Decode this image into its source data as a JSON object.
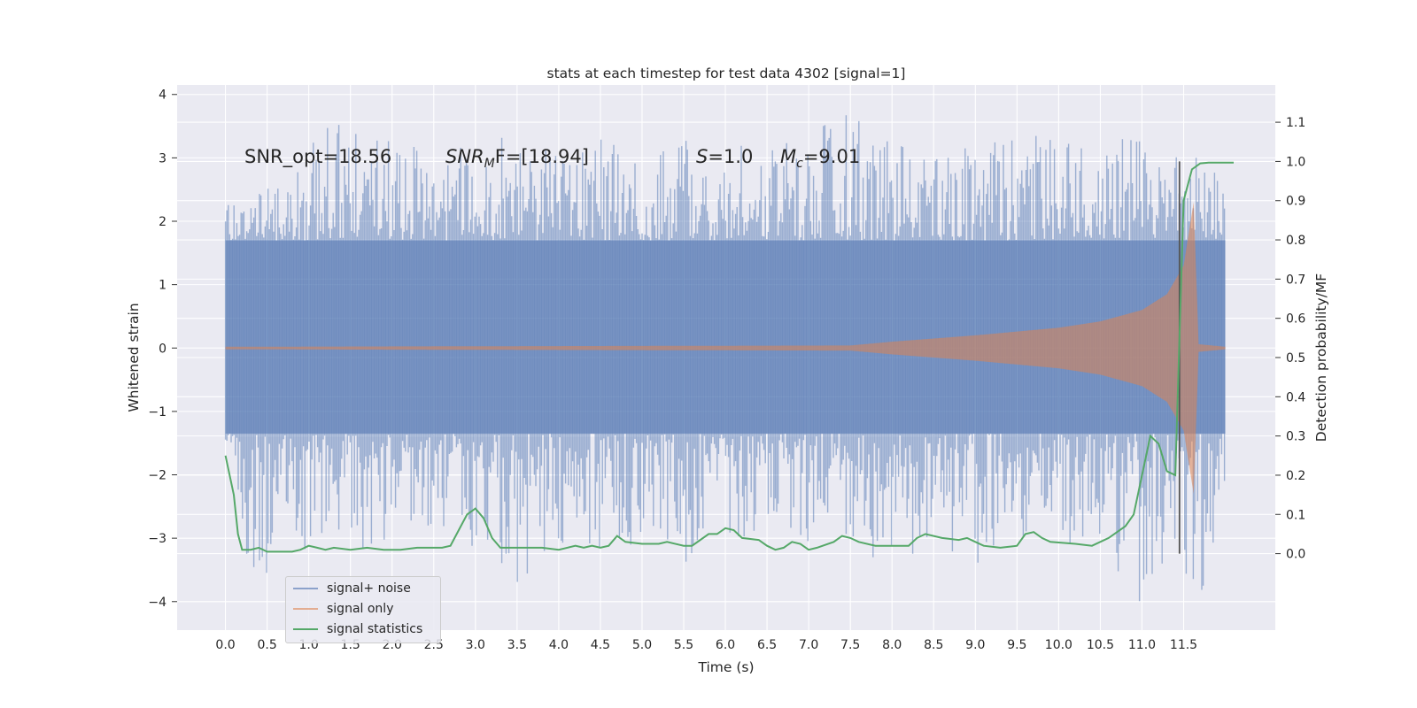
{
  "chart_data": {
    "type": "line",
    "title": "stats at each timestep for test data 4302 [signal=1]",
    "xlabel": "Time (s)",
    "ylabel": "Whitened strain",
    "y2label": "Detection probability/MF",
    "xlim": [
      -0.58,
      12.6
    ],
    "ylim": [
      -4.45,
      4.15
    ],
    "y2lim": [
      -0.195,
      1.195
    ],
    "x_ticks": [
      "0.0",
      "0.5",
      "1.0",
      "1.5",
      "2.0",
      "2.5",
      "3.0",
      "3.5",
      "4.0",
      "4.5",
      "5.0",
      "5.5",
      "6.0",
      "6.5",
      "7.0",
      "7.5",
      "8.0",
      "8.5",
      "9.0",
      "9.5",
      "10.0",
      "10.5",
      "11.0",
      "11.5"
    ],
    "y_ticks": [
      "−4",
      "−3",
      "−2",
      "−1",
      "0",
      "1",
      "2",
      "3",
      "4"
    ],
    "y2_ticks": [
      "0.0",
      "0.1",
      "0.2",
      "0.3",
      "0.4",
      "0.5",
      "0.6",
      "0.7",
      "0.8",
      "0.9",
      "1.0",
      "1.1"
    ],
    "grid": true,
    "legend_position": "lower-left",
    "annotations": [
      {
        "id": "snr-opt",
        "text": "SNR_opt=18.56",
        "x": 0.2,
        "y": 2.9
      },
      {
        "id": "snr-mf",
        "text": "SNR",
        "sub": "M",
        "rest": "F=[18.94]",
        "x": 2.6,
        "y": 2.9
      },
      {
        "id": "s-label",
        "text": "S",
        "rest": "=1.0",
        "x": 5.6,
        "y": 2.9
      },
      {
        "id": "mc-label",
        "text": "M",
        "sub": "c",
        "rest": "=9.01",
        "x": 6.6,
        "y": 2.9
      }
    ],
    "vline": {
      "x": 11.45,
      "y2_range": [
        0.0,
        1.0
      ],
      "color": "#555555"
    },
    "series": [
      {
        "name": "signal+ noise",
        "color": "#4c72b0",
        "axis": "left",
        "x_range": [
          0.0,
          12.0
        ],
        "core_band": [
          -1.35,
          1.7
        ],
        "spike_envelope": [
          {
            "x": 0.0,
            "max": 2.3,
            "min": -2.4
          },
          {
            "x": 0.25,
            "max": 2.2,
            "min": -3.4
          },
          {
            "x": 0.45,
            "max": 2.5,
            "min": -3.6
          },
          {
            "x": 0.75,
            "max": 2.7,
            "min": -3.3
          },
          {
            "x": 1.15,
            "max": 3.5,
            "min": -3.1
          },
          {
            "x": 1.4,
            "max": 3.6,
            "min": -3.0
          },
          {
            "x": 1.6,
            "max": 3.4,
            "min": -3.2
          },
          {
            "x": 2.2,
            "max": 3.3,
            "min": -2.9
          },
          {
            "x": 2.6,
            "max": 3.2,
            "min": -3.0
          },
          {
            "x": 3.0,
            "max": 3.6,
            "min": -3.3
          },
          {
            "x": 3.5,
            "max": 3.2,
            "min": -3.8
          },
          {
            "x": 4.0,
            "max": 3.1,
            "min": -3.1
          },
          {
            "x": 4.5,
            "max": 3.3,
            "min": -3.2
          },
          {
            "x": 5.0,
            "max": 3.2,
            "min": -3.1
          },
          {
            "x": 5.5,
            "max": 3.3,
            "min": -3.6
          },
          {
            "x": 6.0,
            "max": 3.4,
            "min": -3.2
          },
          {
            "x": 6.5,
            "max": 3.2,
            "min": -3.1
          },
          {
            "x": 7.0,
            "max": 3.3,
            "min": -3.1
          },
          {
            "x": 7.3,
            "max": 3.8,
            "min": -3.0
          },
          {
            "x": 8.0,
            "max": 3.3,
            "min": -3.7
          },
          {
            "x": 8.5,
            "max": 3.2,
            "min": -3.0
          },
          {
            "x": 9.0,
            "max": 3.3,
            "min": -3.5
          },
          {
            "x": 9.4,
            "max": 3.7,
            "min": -3.0
          },
          {
            "x": 10.0,
            "max": 3.4,
            "min": -3.3
          },
          {
            "x": 10.5,
            "max": 3.5,
            "min": -3.1
          },
          {
            "x": 11.0,
            "max": 3.3,
            "min": -4.1
          },
          {
            "x": 11.5,
            "max": 3.2,
            "min": -3.7
          },
          {
            "x": 11.8,
            "max": 3.2,
            "min": -3.9
          },
          {
            "x": 12.0,
            "max": 2.4,
            "min": -3.3
          }
        ]
      },
      {
        "name": "signal only",
        "color": "#dd8452",
        "axis": "left",
        "x_range": [
          0.0,
          12.0
        ],
        "envelope": [
          {
            "x": 0.0,
            "amp": 0.02
          },
          {
            "x": 7.5,
            "amp": 0.04
          },
          {
            "x": 8.0,
            "amp": 0.1
          },
          {
            "x": 9.0,
            "amp": 0.2
          },
          {
            "x": 10.0,
            "amp": 0.32
          },
          {
            "x": 10.5,
            "amp": 0.42
          },
          {
            "x": 11.0,
            "amp": 0.6
          },
          {
            "x": 11.3,
            "amp": 0.85
          },
          {
            "x": 11.5,
            "amp": 1.3
          },
          {
            "x": 11.62,
            "amp": 2.3
          },
          {
            "x": 11.68,
            "amp": 0.06
          },
          {
            "x": 12.0,
            "amp": 0.02
          }
        ]
      },
      {
        "name": "signal statistics",
        "color": "#55a868",
        "axis": "right",
        "points": [
          [
            0.0,
            0.25
          ],
          [
            0.1,
            0.15
          ],
          [
            0.15,
            0.05
          ],
          [
            0.2,
            0.01
          ],
          [
            0.3,
            0.01
          ],
          [
            0.4,
            0.015
          ],
          [
            0.5,
            0.005
          ],
          [
            0.7,
            0.005
          ],
          [
            0.8,
            0.005
          ],
          [
            0.9,
            0.01
          ],
          [
            1.0,
            0.02
          ],
          [
            1.1,
            0.015
          ],
          [
            1.2,
            0.01
          ],
          [
            1.3,
            0.015
          ],
          [
            1.5,
            0.01
          ],
          [
            1.7,
            0.015
          ],
          [
            1.9,
            0.01
          ],
          [
            2.1,
            0.01
          ],
          [
            2.3,
            0.015
          ],
          [
            2.6,
            0.015
          ],
          [
            2.7,
            0.02
          ],
          [
            2.8,
            0.06
          ],
          [
            2.9,
            0.1
          ],
          [
            3.0,
            0.115
          ],
          [
            3.1,
            0.09
          ],
          [
            3.2,
            0.04
          ],
          [
            3.3,
            0.015
          ],
          [
            3.5,
            0.015
          ],
          [
            3.8,
            0.015
          ],
          [
            4.0,
            0.01
          ],
          [
            4.2,
            0.02
          ],
          [
            4.3,
            0.015
          ],
          [
            4.4,
            0.02
          ],
          [
            4.5,
            0.015
          ],
          [
            4.6,
            0.02
          ],
          [
            4.7,
            0.045
          ],
          [
            4.8,
            0.03
          ],
          [
            5.0,
            0.025
          ],
          [
            5.2,
            0.025
          ],
          [
            5.3,
            0.03
          ],
          [
            5.5,
            0.02
          ],
          [
            5.6,
            0.02
          ],
          [
            5.8,
            0.05
          ],
          [
            5.9,
            0.05
          ],
          [
            6.0,
            0.065
          ],
          [
            6.1,
            0.06
          ],
          [
            6.2,
            0.04
          ],
          [
            6.4,
            0.035
          ],
          [
            6.5,
            0.02
          ],
          [
            6.6,
            0.01
          ],
          [
            6.7,
            0.015
          ],
          [
            6.8,
            0.03
          ],
          [
            6.9,
            0.025
          ],
          [
            7.0,
            0.01
          ],
          [
            7.1,
            0.015
          ],
          [
            7.3,
            0.03
          ],
          [
            7.4,
            0.045
          ],
          [
            7.5,
            0.04
          ],
          [
            7.6,
            0.03
          ],
          [
            7.8,
            0.02
          ],
          [
            8.0,
            0.02
          ],
          [
            8.2,
            0.02
          ],
          [
            8.3,
            0.04
          ],
          [
            8.4,
            0.05
          ],
          [
            8.6,
            0.04
          ],
          [
            8.8,
            0.035
          ],
          [
            8.9,
            0.04
          ],
          [
            9.0,
            0.03
          ],
          [
            9.1,
            0.02
          ],
          [
            9.3,
            0.015
          ],
          [
            9.5,
            0.02
          ],
          [
            9.6,
            0.05
          ],
          [
            9.7,
            0.055
          ],
          [
            9.8,
            0.04
          ],
          [
            9.9,
            0.03
          ],
          [
            10.2,
            0.025
          ],
          [
            10.4,
            0.02
          ],
          [
            10.6,
            0.04
          ],
          [
            10.8,
            0.07
          ],
          [
            10.9,
            0.1
          ],
          [
            11.0,
            0.2
          ],
          [
            11.1,
            0.3
          ],
          [
            11.2,
            0.28
          ],
          [
            11.3,
            0.21
          ],
          [
            11.4,
            0.2
          ],
          [
            11.5,
            0.9
          ],
          [
            11.6,
            0.98
          ],
          [
            11.7,
            0.995
          ],
          [
            11.8,
            0.997
          ],
          [
            12.0,
            0.997
          ],
          [
            12.1,
            0.997
          ]
        ]
      }
    ]
  }
}
